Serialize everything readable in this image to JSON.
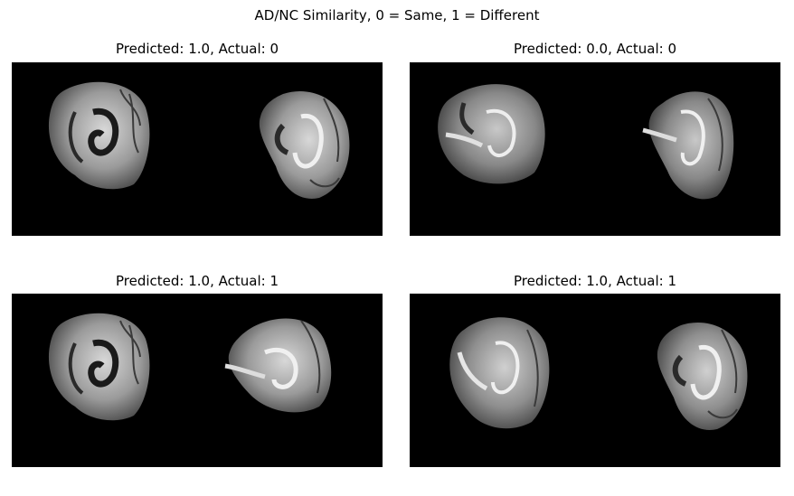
{
  "figure": {
    "suptitle": "AD/NC Similarity, 0 = Same, 1 = Different"
  },
  "panels": [
    {
      "title": "Predicted: 1.0, Actual: 0"
    },
    {
      "title": "Predicted: 0.0, Actual: 0"
    },
    {
      "title": "Predicted: 1.0, Actual: 1"
    },
    {
      "title": "Predicted: 1.0, Actual: 1"
    }
  ],
  "colors": {
    "background": "#ffffff",
    "image_background": "#000000",
    "brain_light": "#cfcfcf",
    "brain_dark": "#5a5a5a"
  }
}
